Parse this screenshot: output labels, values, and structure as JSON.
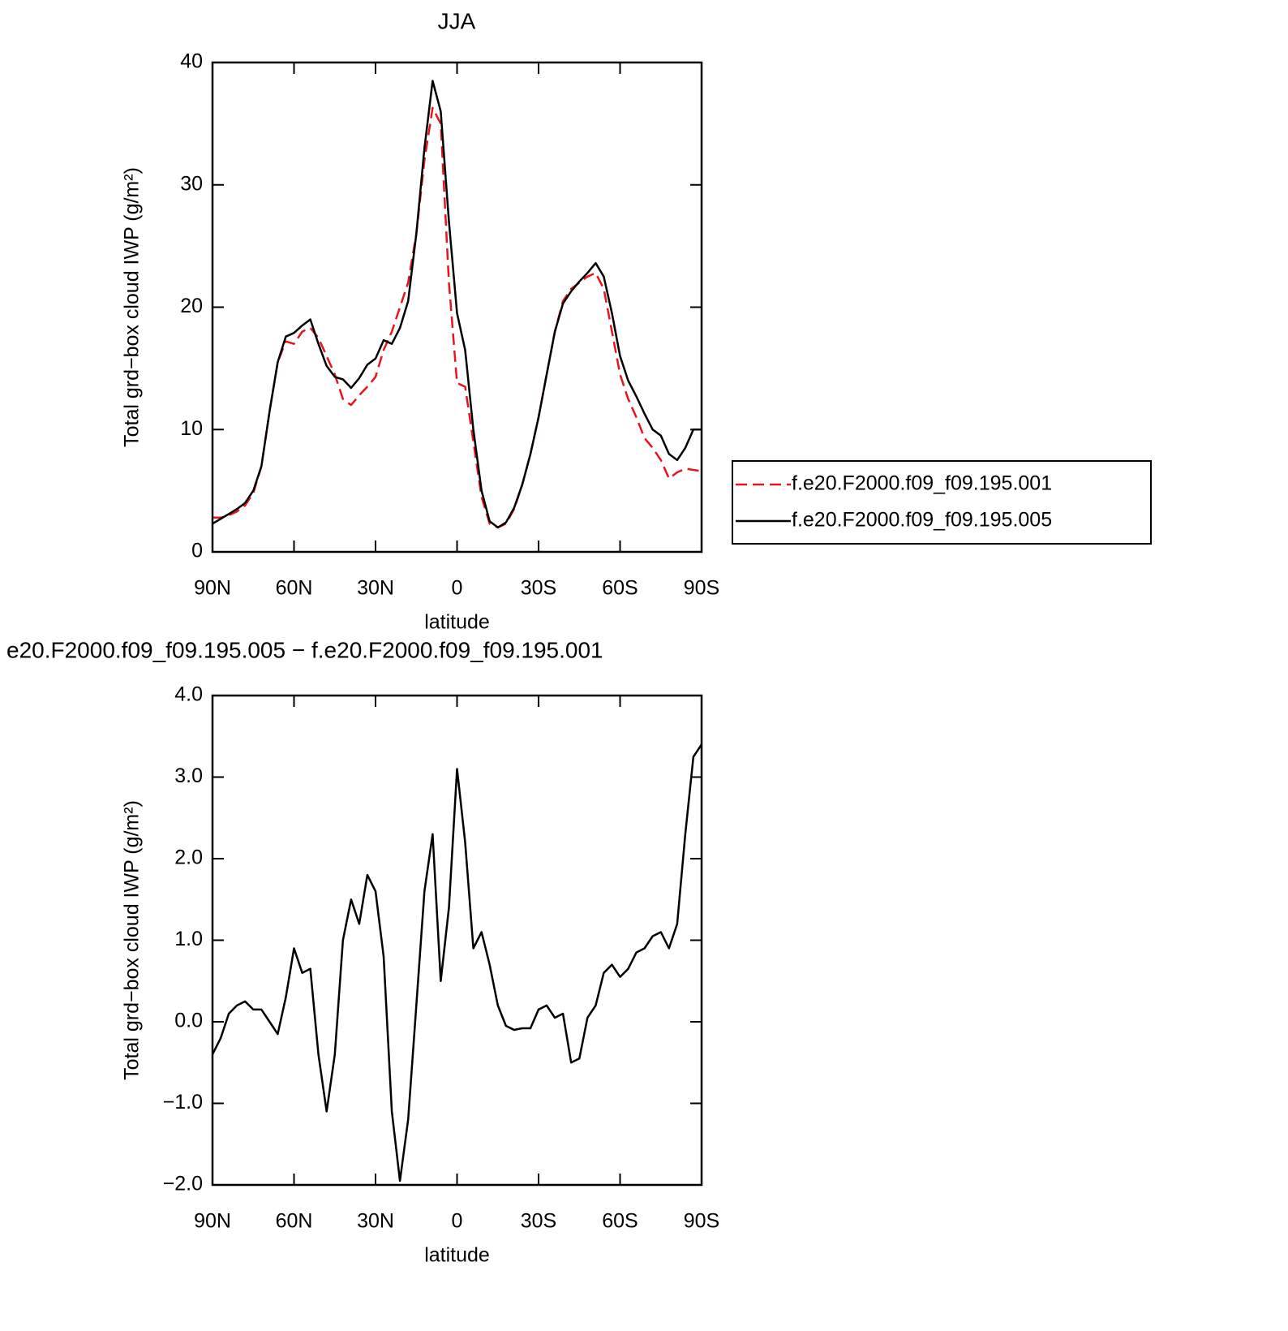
{
  "chart_data": [
    {
      "type": "line",
      "title": "JJA",
      "xlabel": "latitude",
      "ylabel": "Total grd−box cloud IWP (g/m²)",
      "x": [
        90,
        87,
        84,
        81,
        78,
        75,
        72,
        69,
        66,
        63,
        60,
        57,
        54,
        51,
        48,
        45,
        42,
        39,
        36,
        33,
        30,
        27,
        24,
        21,
        18,
        15,
        12,
        9,
        6,
        3,
        0,
        -3,
        -6,
        -9,
        -12,
        -15,
        -18,
        -21,
        -24,
        -27,
        -30,
        -33,
        -36,
        -39,
        -42,
        -45,
        -48,
        -51,
        -54,
        -57,
        -60,
        -63,
        -66,
        -69,
        -72,
        -75,
        -78,
        -81,
        -84,
        -87,
        -90
      ],
      "xlim": [
        90,
        -90
      ],
      "xticks": [
        {
          "value": 90,
          "label": "90N"
        },
        {
          "value": 60,
          "label": "60N"
        },
        {
          "value": 30,
          "label": "30N"
        },
        0,
        {
          "value": -30,
          "label": "30S"
        },
        {
          "value": -60,
          "label": "60S"
        },
        {
          "value": -90,
          "label": "90S"
        }
      ],
      "ylim": [
        0,
        40
      ],
      "yticks": [
        0,
        10,
        20,
        30,
        40
      ],
      "legend": "right",
      "series": [
        {
          "name": "f.e20.F2000.f09_f09.195.001",
          "color": "#e8141c",
          "linestyle": "dashed",
          "values": [
            2.8,
            2.8,
            3.0,
            3.3,
            3.8,
            4.8,
            7,
            11.5,
            15.5,
            17.2,
            17.0,
            18.0,
            18.3,
            17.5,
            16,
            14.5,
            12.5,
            12.0,
            12.8,
            13.5,
            14.3,
            16.5,
            18,
            20,
            22,
            26,
            32,
            36.3,
            35,
            22,
            13.8,
            13.5,
            9,
            4.5,
            2.3,
            2.0,
            2.3,
            3.5,
            5.5,
            8,
            11,
            14.5,
            18,
            20.5,
            21.5,
            22.0,
            22.5,
            22.8,
            21.5,
            18,
            14.5,
            12.5,
            11,
            9.3,
            8.5,
            7.5,
            6.0,
            6.5,
            6.8,
            6.7,
            6.6
          ]
        },
        {
          "name": "f.e20.F2000.f09_f09.195.005",
          "color": "#000000",
          "linestyle": "solid",
          "values": [
            2.3,
            2.7,
            3.1,
            3.5,
            4.0,
            5.0,
            7.0,
            11.5,
            15.5,
            17.6,
            17.9,
            18.5,
            19.0,
            17.0,
            15.2,
            14.3,
            14.1,
            13.4,
            14.2,
            15.3,
            15.8,
            17.3,
            17.0,
            18.3,
            20.5,
            26,
            33,
            38.5,
            36,
            27,
            19.5,
            16.5,
            10,
            5,
            2.5,
            2.0,
            2.4,
            3.6,
            5.5,
            8.0,
            11,
            14.5,
            18,
            20.3,
            21.3,
            22.1,
            22.8,
            23.6,
            22.5,
            19.5,
            16,
            14,
            12.7,
            11.3,
            10.0,
            9.5,
            8.0,
            7.5,
            8.5,
            10.0,
            10.0
          ]
        }
      ]
    },
    {
      "type": "line",
      "title": "e20.F2000.f09_f09.195.005 − f.e20.F2000.f09_f09.195.001",
      "xlabel": "latitude",
      "ylabel": "Total grd−box cloud IWP (g/m²)",
      "x": [
        90,
        87,
        84,
        81,
        78,
        75,
        72,
        69,
        66,
        63,
        60,
        57,
        54,
        51,
        48,
        45,
        42,
        39,
        36,
        33,
        30,
        27,
        24,
        21,
        18,
        15,
        12,
        9,
        6,
        3,
        0,
        -3,
        -6,
        -9,
        -12,
        -15,
        -18,
        -21,
        -24,
        -27,
        -30,
        -33,
        -36,
        -39,
        -42,
        -45,
        -48,
        -51,
        -54,
        -57,
        -60,
        -63,
        -66,
        -69,
        -72,
        -75,
        -78,
        -81,
        -84,
        -87,
        -90
      ],
      "xlim": [
        90,
        -90
      ],
      "xticks": [
        {
          "value": 90,
          "label": "90N"
        },
        {
          "value": 60,
          "label": "60N"
        },
        {
          "value": 30,
          "label": "30N"
        },
        0,
        {
          "value": -30,
          "label": "30S"
        },
        {
          "value": -60,
          "label": "60S"
        },
        {
          "value": -90,
          "label": "90S"
        }
      ],
      "ylim": [
        -2,
        4
      ],
      "yticks": [
        {
          "value": -2,
          "label": "−2.0"
        },
        {
          "value": -1,
          "label": "−1.0"
        },
        {
          "value": 0,
          "label": "0.0"
        },
        {
          "value": 1,
          "label": "1.0"
        },
        {
          "value": 2,
          "label": "2.0"
        },
        {
          "value": 3,
          "label": "3.0"
        },
        {
          "value": 4,
          "label": "4.0"
        }
      ],
      "series": [
        {
          "color": "#000000",
          "linestyle": "solid",
          "values": [
            -0.4,
            -0.2,
            0.1,
            0.2,
            0.25,
            0.15,
            0.15,
            0.0,
            -0.15,
            0.3,
            0.9,
            0.6,
            0.65,
            -0.4,
            -1.1,
            -0.4,
            1.0,
            1.5,
            1.2,
            1.8,
            1.6,
            0.8,
            -1.1,
            -1.95,
            -1.2,
            0.2,
            1.6,
            2.3,
            0.5,
            1.4,
            3.1,
            2.2,
            0.9,
            1.1,
            0.7,
            0.2,
            -0.05,
            -0.1,
            -0.08,
            -0.08,
            0.15,
            0.2,
            0.05,
            0.1,
            -0.5,
            -0.45,
            0.05,
            0.2,
            0.6,
            0.7,
            0.55,
            0.65,
            0.85,
            0.9,
            1.05,
            1.1,
            0.9,
            1.2,
            2.3,
            3.25,
            3.4
          ]
        }
      ]
    }
  ]
}
